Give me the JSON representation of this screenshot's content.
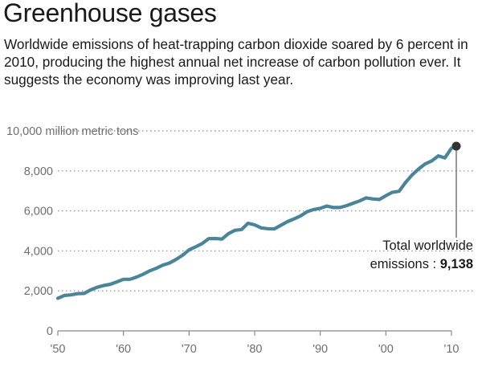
{
  "title": "Greenhouse gases",
  "subtitle": "Worldwide emissions of heat-trapping carbon dioxide soared by 6 percent in 2010, producing the highest annual net increase of carbon pollution ever. It suggests the economy was improving last year.",
  "colors": {
    "line": "#4a8499",
    "text": "#1a1a1a",
    "axis": "#888888",
    "grid": "#9a9a9a",
    "marker": "#333333"
  },
  "chart_data": {
    "type": "line",
    "ylabel": "million metric tons",
    "ylim": [
      0,
      10000
    ],
    "xlim": [
      1950,
      2010
    ],
    "grid": "dotted horizontal",
    "y_ticks": [
      0,
      2000,
      4000,
      6000,
      8000,
      10000
    ],
    "y_tick_labels": [
      "0",
      "2,000",
      "4,000",
      "6,000",
      "8,000",
      "10,000"
    ],
    "x_ticks": [
      1950,
      1960,
      1970,
      1980,
      1990,
      2000,
      2010
    ],
    "x_tick_labels": [
      "'50",
      "'60",
      "'70",
      "'80",
      "'90",
      "'00",
      "'10"
    ],
    "series": [
      {
        "x": [
          1950,
          1951,
          1952,
          1953,
          1954,
          1955,
          1956,
          1957,
          1958,
          1959,
          1960,
          1961,
          1962,
          1963,
          1964,
          1965,
          1966,
          1967,
          1968,
          1969,
          1970,
          1971,
          1972,
          1973,
          1974,
          1975,
          1976,
          1977,
          1978,
          1979,
          1980,
          1981,
          1982,
          1983,
          1984,
          1985,
          1986,
          1987,
          1988,
          1989,
          1990,
          1991,
          1992,
          1993,
          1994,
          1995,
          1996,
          1997,
          1998,
          1999,
          2000,
          2001,
          2002,
          2003,
          2004,
          2005,
          2006,
          2007,
          2008,
          2009,
          2010
        ],
        "values": [
          1630,
          1770,
          1800,
          1860,
          1870,
          2050,
          2180,
          2270,
          2330,
          2450,
          2580,
          2580,
          2690,
          2830,
          3000,
          3130,
          3290,
          3390,
          3570,
          3780,
          4050,
          4200,
          4370,
          4610,
          4620,
          4590,
          4860,
          5030,
          5070,
          5380,
          5300,
          5150,
          5110,
          5100,
          5280,
          5460,
          5600,
          5750,
          5960,
          6070,
          6130,
          6240,
          6170,
          6170,
          6260,
          6380,
          6500,
          6650,
          6600,
          6570,
          6760,
          6930,
          6980,
          7420,
          7800,
          8100,
          8350,
          8500,
          8750,
          8650,
          9138
        ]
      }
    ],
    "annotation": {
      "line1": "Total worldwide",
      "line2": "emissions : ",
      "value": "9,138",
      "x": 2010,
      "y": 9138
    }
  }
}
